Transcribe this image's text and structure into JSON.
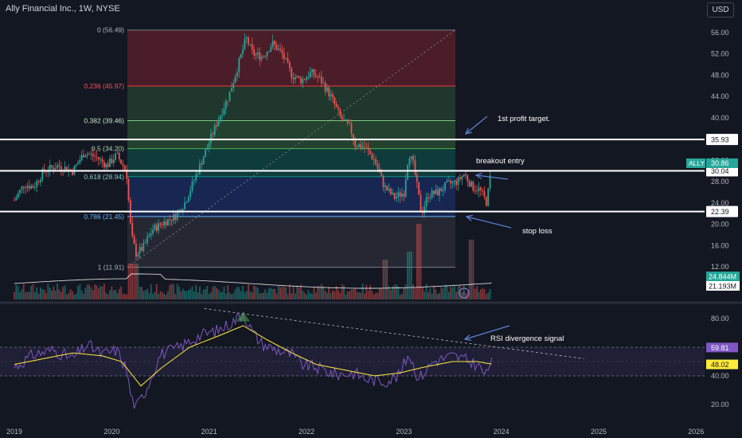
{
  "header": {
    "title": "Ally Financial Inc., 1W, NYSE",
    "currency": "USD"
  },
  "colors": {
    "up": "#26a69a",
    "down": "#ef5350",
    "bg": "#131722",
    "rsi_line": "#7e57c2",
    "rsi_ma": "#ffeb3b",
    "grid": "#1e222d",
    "axis_text": "#b2b5be"
  },
  "chart_data": {
    "type": "candlestick",
    "symbol": "ALLY",
    "interval": "1W",
    "price_axis": {
      "ticks": [
        "56.00",
        "52.00",
        "48.00",
        "44.00",
        "40.00",
        "36.00",
        "32.00",
        "28.00",
        "24.00",
        "20.00",
        "16.00",
        "12.00"
      ],
      "range": [
        10,
        59
      ]
    },
    "time_axis": {
      "ticks": [
        "2019",
        "2020",
        "2021",
        "2022",
        "2023",
        "2024",
        "2025",
        "2026"
      ]
    },
    "price_path": [
      [
        2019.0,
        24.5
      ],
      [
        2019.1,
        27.5
      ],
      [
        2019.2,
        27.0
      ],
      [
        2019.3,
        30.0
      ],
      [
        2019.45,
        31.0
      ],
      [
        2019.6,
        30.0
      ],
      [
        2019.72,
        33.5
      ],
      [
        2019.85,
        32.5
      ],
      [
        2019.95,
        31.0
      ],
      [
        2020.05,
        33.0
      ],
      [
        2020.15,
        30.0
      ],
      [
        2020.2,
        18.0
      ],
      [
        2020.25,
        14.5
      ],
      [
        2020.32,
        15.5
      ],
      [
        2020.42,
        19.0
      ],
      [
        2020.55,
        20.5
      ],
      [
        2020.65,
        21.5
      ],
      [
        2020.75,
        24.0
      ],
      [
        2020.85,
        28.5
      ],
      [
        2020.97,
        34.0
      ],
      [
        2021.1,
        40.0
      ],
      [
        2021.2,
        44.0
      ],
      [
        2021.3,
        50.0
      ],
      [
        2021.38,
        55.0
      ],
      [
        2021.45,
        52.0
      ],
      [
        2021.55,
        51.5
      ],
      [
        2021.65,
        54.0
      ],
      [
        2021.75,
        52.0
      ],
      [
        2021.85,
        48.0
      ],
      [
        2021.95,
        47.0
      ],
      [
        2022.05,
        48.5
      ],
      [
        2022.15,
        47.0
      ],
      [
        2022.25,
        44.0
      ],
      [
        2022.35,
        40.0
      ],
      [
        2022.45,
        38.0
      ],
      [
        2022.5,
        35.0
      ],
      [
        2022.6,
        34.5
      ],
      [
        2022.7,
        32.0
      ],
      [
        2022.8,
        27.0
      ],
      [
        2022.9,
        25.0
      ],
      [
        2023.0,
        26.0
      ],
      [
        2023.05,
        33.5
      ],
      [
        2023.1,
        31.0
      ],
      [
        2023.18,
        22.0
      ],
      [
        2023.25,
        25.5
      ],
      [
        2023.35,
        26.0
      ],
      [
        2023.45,
        27.5
      ],
      [
        2023.55,
        28.0
      ],
      [
        2023.62,
        29.5
      ],
      [
        2023.7,
        27.0
      ],
      [
        2023.78,
        26.5
      ],
      [
        2023.85,
        24.0
      ],
      [
        2023.9,
        30.86
      ]
    ],
    "fibonacci": [
      {
        "label": "0 (56.49)",
        "price": 56.49
      },
      {
        "label": "0.236 (45.97)",
        "price": 45.97
      },
      {
        "label": "0.382 (39.46)",
        "price": 39.46
      },
      {
        "label": "0.5 (34.20)",
        "price": 34.2
      },
      {
        "label": "0.618 (28.94)",
        "price": 28.94
      },
      {
        "label": "0.786 (21.45)",
        "price": 21.45
      },
      {
        "label": "1 (11.91)",
        "price": 11.91
      }
    ],
    "horizontal_lines": [
      {
        "price": 35.93,
        "label": "35.93"
      },
      {
        "price": 30.04,
        "label": "30.04"
      },
      {
        "price": 22.39,
        "label": "22.39"
      }
    ],
    "last_price": {
      "symbol": "ALLY",
      "value": "30.86"
    },
    "volume": {
      "labels": [
        "24.844M",
        "21.193M"
      ]
    },
    "annotations": [
      {
        "text": "1st profit target."
      },
      {
        "text": "breakout entry"
      },
      {
        "text": "stop loss"
      },
      {
        "text": "RSI divergence signal"
      }
    ],
    "rsi": {
      "axis_ticks": [
        "80.00",
        "60.00",
        "40.00",
        "20.00"
      ],
      "range": [
        10,
        90
      ],
      "band": [
        40,
        60
      ],
      "current": "59.81",
      "ma_current": "48.02",
      "path": [
        [
          2019.0,
          46
        ],
        [
          2019.2,
          55
        ],
        [
          2019.4,
          58
        ],
        [
          2019.6,
          52
        ],
        [
          2019.75,
          62
        ],
        [
          2019.9,
          55
        ],
        [
          2020.05,
          58
        ],
        [
          2020.15,
          45
        ],
        [
          2020.2,
          25
        ],
        [
          2020.25,
          18
        ],
        [
          2020.35,
          30
        ],
        [
          2020.5,
          55
        ],
        [
          2020.7,
          60
        ],
        [
          2020.9,
          68
        ],
        [
          2021.1,
          72
        ],
        [
          2021.25,
          78
        ],
        [
          2021.35,
          84
        ],
        [
          2021.45,
          70
        ],
        [
          2021.55,
          62
        ],
        [
          2021.7,
          58
        ],
        [
          2021.85,
          55
        ],
        [
          2021.95,
          48
        ],
        [
          2022.1,
          46
        ],
        [
          2022.3,
          41
        ],
        [
          2022.5,
          42
        ],
        [
          2022.6,
          38
        ],
        [
          2022.8,
          36
        ],
        [
          2022.95,
          40
        ],
        [
          2023.05,
          56
        ],
        [
          2023.15,
          38
        ],
        [
          2023.3,
          50
        ],
        [
          2023.5,
          54
        ],
        [
          2023.6,
          52
        ],
        [
          2023.75,
          48
        ],
        [
          2023.85,
          40
        ],
        [
          2023.92,
          59.81
        ]
      ],
      "ma_path": [
        [
          2019.0,
          48
        ],
        [
          2019.3,
          52
        ],
        [
          2019.6,
          56
        ],
        [
          2019.9,
          54
        ],
        [
          2020.1,
          50
        ],
        [
          2020.3,
          33
        ],
        [
          2020.5,
          45
        ],
        [
          2020.8,
          60
        ],
        [
          2021.1,
          68
        ],
        [
          2021.35,
          75
        ],
        [
          2021.6,
          65
        ],
        [
          2021.85,
          56
        ],
        [
          2022.1,
          48
        ],
        [
          2022.4,
          44
        ],
        [
          2022.7,
          40
        ],
        [
          2022.95,
          42
        ],
        [
          2023.2,
          46
        ],
        [
          2023.5,
          50
        ],
        [
          2023.75,
          50
        ],
        [
          2023.92,
          48.02
        ]
      ]
    }
  }
}
